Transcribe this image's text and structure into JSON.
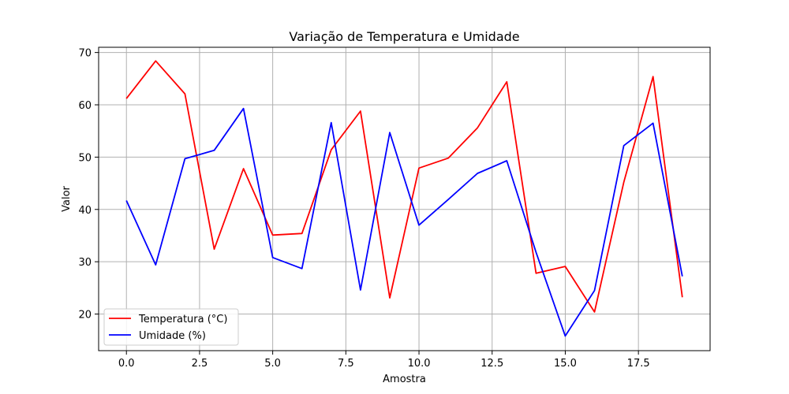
{
  "chart_data": {
    "type": "line",
    "title": "Variação de Temperatura e Umidade",
    "xlabel": "Amostra",
    "ylabel": "Valor",
    "xlim": [
      -0.95,
      19.95
    ],
    "ylim": [
      13.0,
      71.0
    ],
    "xticks": [
      0.0,
      2.5,
      5.0,
      7.5,
      10.0,
      12.5,
      15.0,
      17.5
    ],
    "xtick_labels": [
      "0.0",
      "2.5",
      "5.0",
      "7.5",
      "10.0",
      "12.5",
      "15.0",
      "17.5"
    ],
    "yticks": [
      20,
      30,
      40,
      50,
      60,
      70
    ],
    "ytick_labels": [
      "20",
      "30",
      "40",
      "50",
      "60",
      "70"
    ],
    "grid": true,
    "legend_position": "lower-left",
    "x": [
      0,
      1,
      2,
      3,
      4,
      5,
      6,
      7,
      8,
      9,
      10,
      11,
      12,
      13,
      14,
      15,
      16,
      17,
      18,
      19
    ],
    "series": [
      {
        "name": "Temperatura (°C)",
        "color": "#ff0000",
        "values": [
          61.2,
          68.4,
          62.1,
          32.4,
          47.8,
          35.1,
          35.4,
          51.4,
          58.8,
          23.1,
          47.9,
          49.8,
          55.6,
          64.4,
          27.8,
          29.1,
          20.4,
          45.2,
          65.4,
          23.2
        ]
      },
      {
        "name": "Umidade (%)",
        "color": "#0000ff",
        "values": [
          41.7,
          29.4,
          49.7,
          51.3,
          59.3,
          30.8,
          28.7,
          56.6,
          24.6,
          54.7,
          37.0,
          41.9,
          46.9,
          49.3,
          31.8,
          15.8,
          24.5,
          52.2,
          56.5,
          27.2
        ]
      }
    ]
  }
}
